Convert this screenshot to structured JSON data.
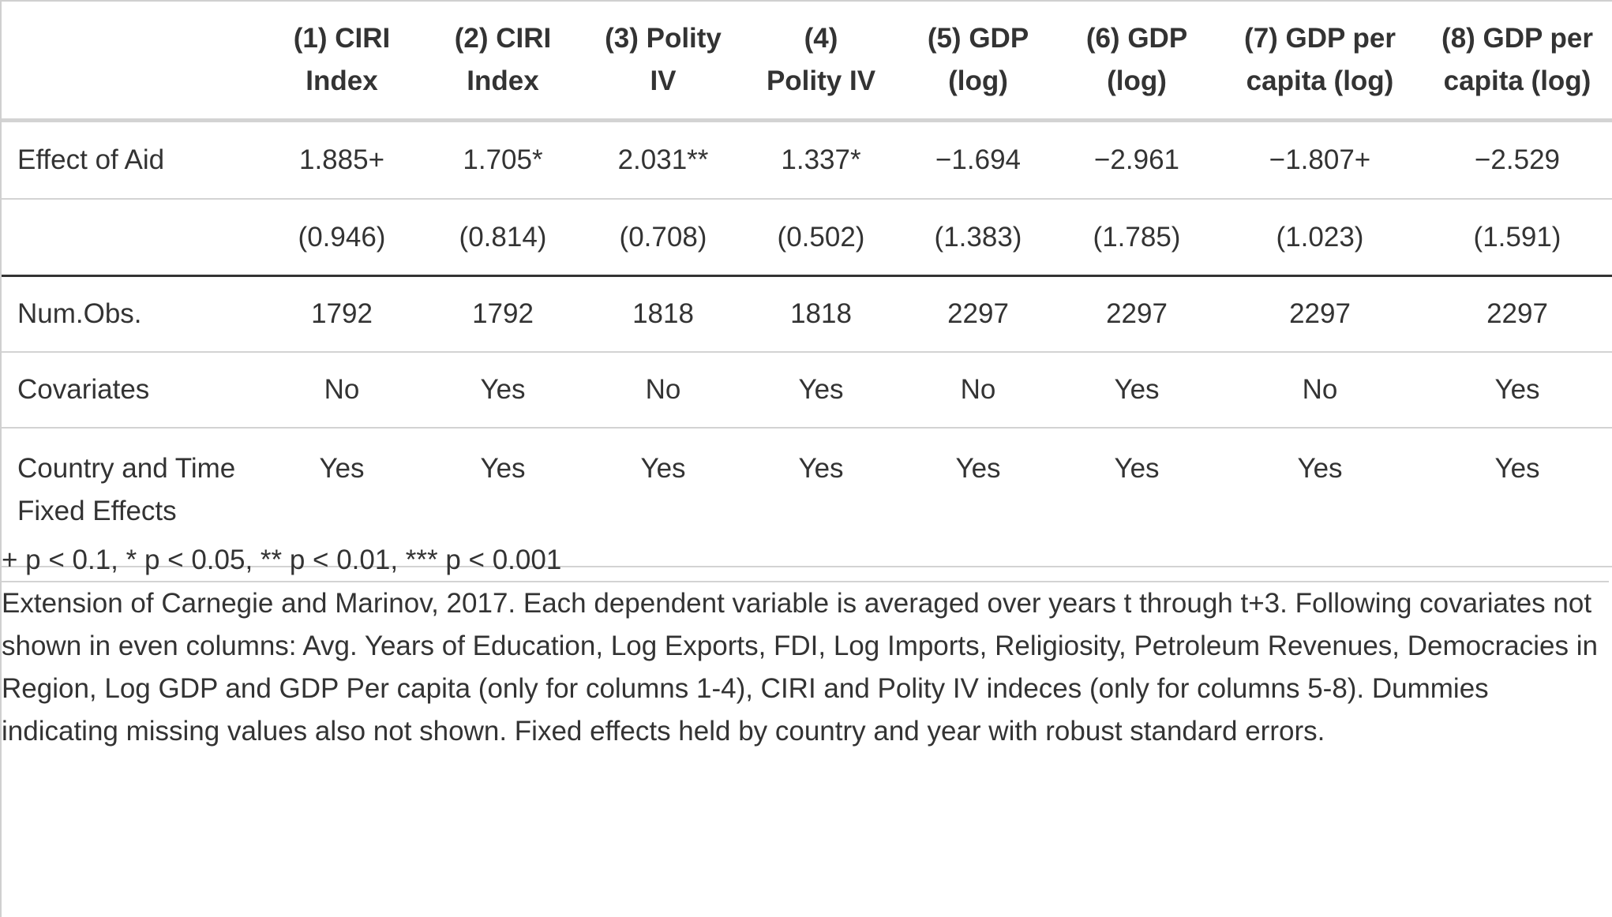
{
  "table": {
    "columns": [
      {
        "line1": "(1) CIRI",
        "line2": "Index"
      },
      {
        "line1": "(2) CIRI",
        "line2": "Index"
      },
      {
        "line1": "(3) Polity",
        "line2": "IV"
      },
      {
        "line1": "(4)",
        "line2": "Polity IV"
      },
      {
        "line1": "(5) GDP",
        "line2": "(log)"
      },
      {
        "line1": "(6) GDP",
        "line2": "(log)"
      },
      {
        "line1": "(7) GDP per",
        "line2": "capita (log)"
      },
      {
        "line1": "(8) GDP per",
        "line2": "capita (log)"
      }
    ],
    "rows": {
      "effect": {
        "label": "Effect of Aid",
        "values": [
          "1.885+",
          "1.705*",
          "2.031**",
          "1.337*",
          "−1.694",
          "−2.961",
          "−1.807+",
          "−2.529"
        ]
      },
      "se": {
        "label": "",
        "values": [
          "(0.946)",
          "(0.814)",
          "(0.708)",
          "(0.502)",
          "(1.383)",
          "(1.785)",
          "(1.023)",
          "(1.591)"
        ]
      },
      "nobs": {
        "label": "Num.Obs.",
        "values": [
          "1792",
          "1792",
          "1818",
          "1818",
          "2297",
          "2297",
          "2297",
          "2297"
        ]
      },
      "covariates": {
        "label": "Covariates",
        "values": [
          "No",
          "Yes",
          "No",
          "Yes",
          "No",
          "Yes",
          "No",
          "Yes"
        ]
      },
      "fixed_effects": {
        "label_line1": "Country and Time",
        "label_line2": "Fixed Effects",
        "values": [
          "Yes",
          "Yes",
          "Yes",
          "Yes",
          "Yes",
          "Yes",
          "Yes",
          "Yes"
        ]
      }
    }
  },
  "notes": {
    "significance": "+ p < 0.1, * p < 0.05, ** p < 0.01, *** p < 0.001",
    "extension": "Extension of Carnegie and Marinov, 2017. Each dependent variable is averaged over years t through t+3. Following covariates not shown in even columns: Avg. Years of Education, Log Exports, FDI, Log Imports, Religiosity, Petroleum Revenues, Democracies in Region, Log GDP and GDP Per capita (only for columns 1-4), CIRI and Polity IV indeces (only for columns 5-8). Dummies indicating missing values also not shown. Fixed effects held by country and year with robust standard errors."
  }
}
